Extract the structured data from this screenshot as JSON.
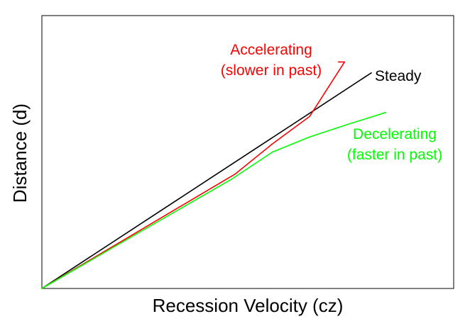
{
  "chart_data": {
    "type": "line",
    "title": "",
    "xlabel": "Recession Velocity (cz)",
    "ylabel": "Distance (d)",
    "xlim": [
      0,
      100
    ],
    "ylim": [
      0,
      100
    ],
    "grid": false,
    "ticks": false,
    "series": [
      {
        "name": "Steady",
        "color": "#000000",
        "x": [
          0,
          80
        ],
        "y": [
          0,
          79
        ],
        "labels": [
          "Steady"
        ]
      },
      {
        "name": "Accelerating",
        "color": "#ff0000",
        "x": [
          0,
          47,
          56,
          65,
          73.5,
          72
        ],
        "y": [
          0,
          42,
          53,
          63,
          83,
          83
        ],
        "labels": [
          "Accelerating",
          "(slower in past)"
        ]
      },
      {
        "name": "Decelerating",
        "color": "#00ff00",
        "x": [
          0,
          46,
          56,
          65,
          74,
          83.5
        ],
        "y": [
          0,
          40,
          50,
          55.5,
          60,
          64.5
        ],
        "labels": [
          "Decelerating",
          "(faster in past)"
        ]
      }
    ]
  }
}
